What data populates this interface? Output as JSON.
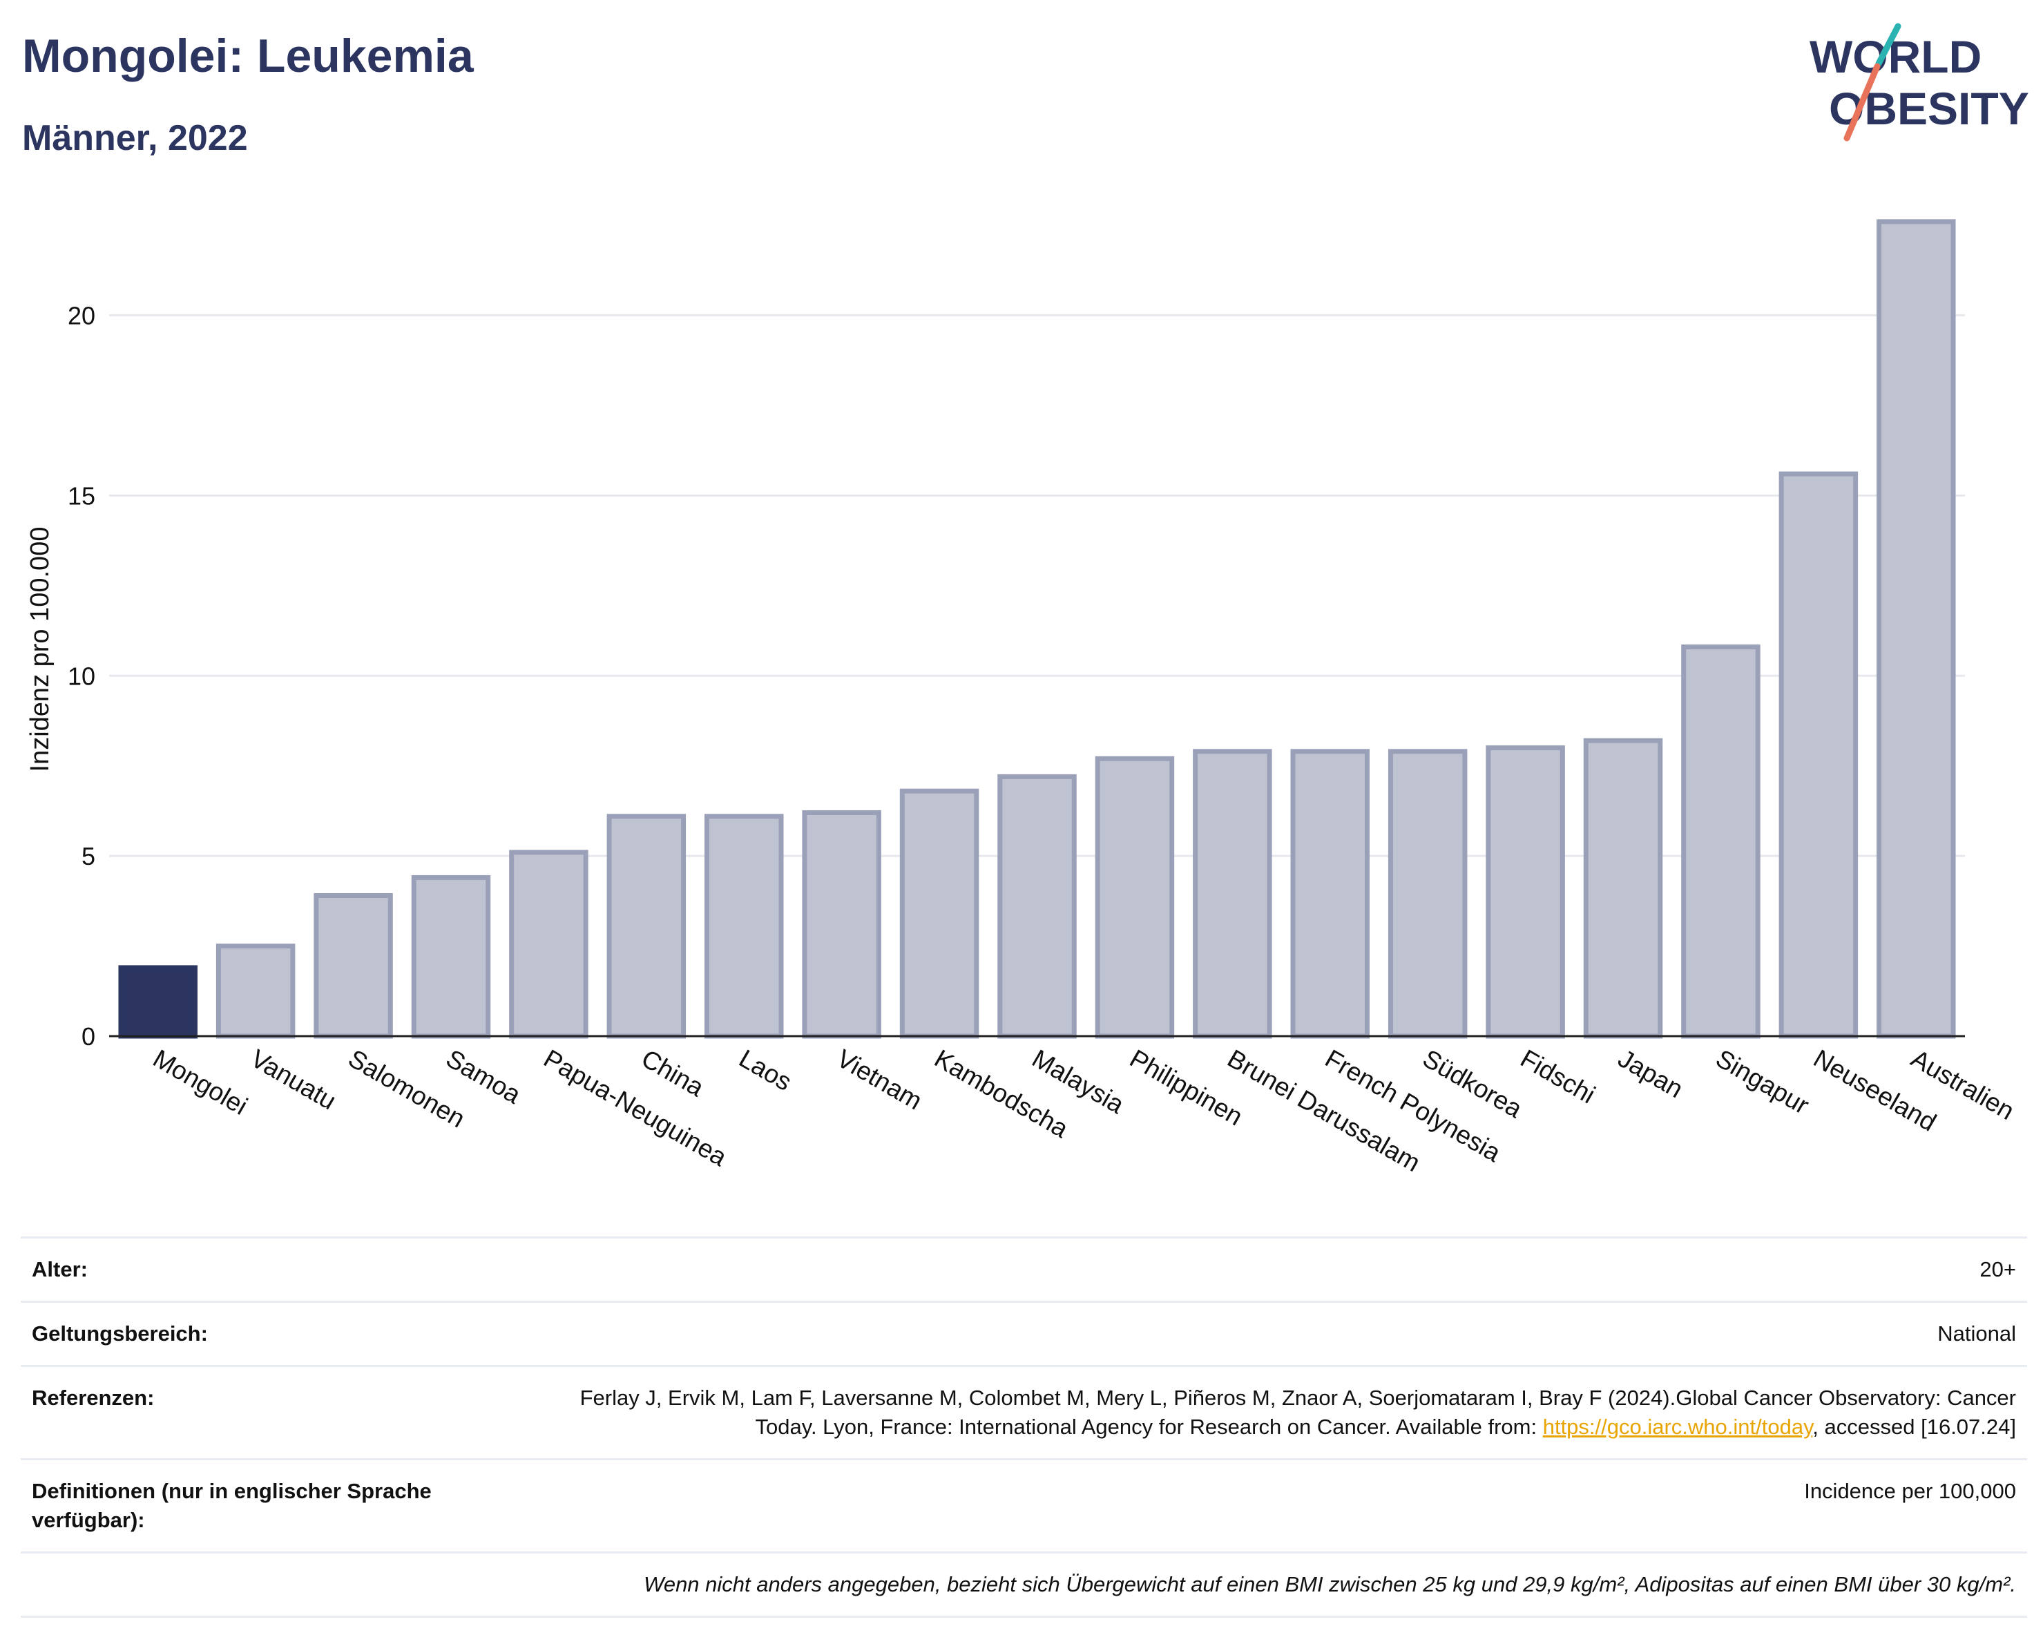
{
  "header": {
    "title": "Mongolei: Leukemia",
    "subtitle": "Männer, 2022"
  },
  "logo": {
    "line1": "WORLD",
    "line2": "OBESITY"
  },
  "colors": {
    "highlight": "#2b3560",
    "bars": "#bfc3d1",
    "bar_outline": "#9aa0b8",
    "title": "#2b3560",
    "logo_teal": "#2bb3b1",
    "logo_red": "#e8735a",
    "link": "#e8a400"
  },
  "chart_data": {
    "type": "bar",
    "title": "",
    "xlabel": "",
    "ylabel": "Inzidenz pro 100.000",
    "ylim": [
      0,
      23
    ],
    "yticks": [
      0,
      5,
      10,
      15,
      20
    ],
    "grid": true,
    "highlight_category": "Mongolei",
    "categories": [
      "Mongolei",
      "Vanuatu",
      "Salomonen",
      "Samoa",
      "Papua-Neuguinea",
      "China",
      "Laos",
      "Vietnam",
      "Kambodscha",
      "Malaysia",
      "Philippinen",
      "Brunei Darussalam",
      "French Polynesia",
      "Südkorea",
      "Fidschi",
      "Japan",
      "Singapur",
      "Neuseeland",
      "Australien"
    ],
    "values": [
      1.9,
      2.5,
      3.9,
      4.4,
      5.1,
      6.1,
      6.1,
      6.2,
      6.8,
      7.2,
      7.7,
      7.9,
      7.9,
      7.9,
      8.0,
      8.2,
      10.8,
      15.6,
      22.6
    ]
  },
  "info": {
    "rows": [
      {
        "label": "Alter:",
        "value": "20+"
      },
      {
        "label": "Geltungsbereich:",
        "value": "National"
      },
      {
        "label": "Referenzen:",
        "value_pre": "Ferlay J, Ervik M, Lam F, Laversanne M, Colombet M, Mery L, Piñeros M, Znaor A, Soerjomataram I, Bray F (2024).Global Cancer Observatory: Cancer Today. Lyon, France: International Agency for Research on Cancer. Available from: ",
        "link": "https://gco.iarc.who.int/today",
        "value_post": ", accessed [16.07.24]"
      },
      {
        "label": "Definitionen (nur in englischer Sprache verfügbar):",
        "value": "Incidence per 100,000"
      }
    ],
    "note": "Wenn nicht anders angegeben, bezieht sich Übergewicht auf einen BMI zwischen 25 kg und 29,9 kg/m², Adipositas auf einen BMI über 30 kg/m²."
  }
}
